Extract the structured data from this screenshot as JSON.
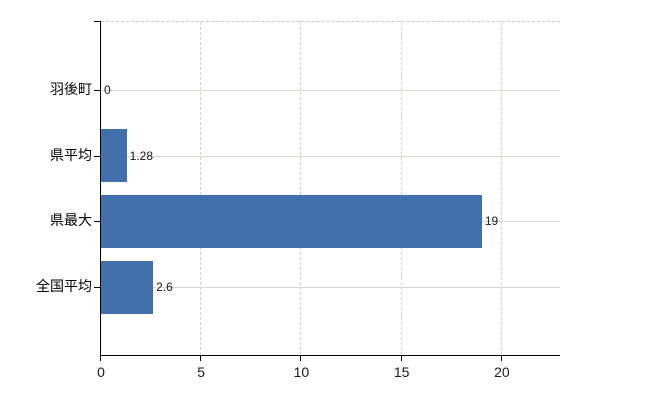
{
  "chart_data": {
    "type": "bar",
    "orientation": "horizontal",
    "title": "",
    "xlabel": "",
    "ylabel": "",
    "categories": [
      "羽後町",
      "県平均",
      "県最大",
      "全国平均"
    ],
    "values": [
      0,
      1.28,
      19,
      2.6
    ],
    "value_labels": [
      "0",
      "1.28",
      "19",
      "2.6"
    ],
    "x_ticks": [
      0,
      5,
      10,
      15,
      20
    ],
    "x_tick_labels": [
      "0",
      "5",
      "10",
      "15",
      "20"
    ],
    "xlim": [
      0,
      22.9
    ],
    "grid": true,
    "legend": false,
    "bar_color": "#4170ac",
    "axis_color": "#000000",
    "gridline_color": "#ccd4ca",
    "label_color": "#1a1a1a"
  }
}
